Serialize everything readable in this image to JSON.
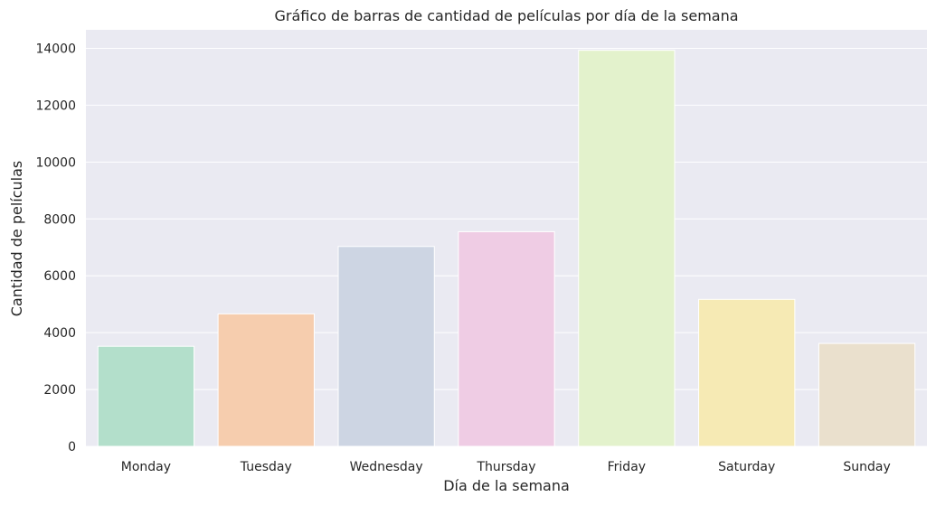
{
  "chart_data": {
    "type": "bar",
    "title": "Gráfico de barras de cantidad de películas por día de la semana",
    "xlabel": "Día de la semana",
    "ylabel": "Cantidad de películas",
    "categories": [
      "Monday",
      "Tuesday",
      "Wednesday",
      "Thursday",
      "Friday",
      "Saturday",
      "Sunday"
    ],
    "values": [
      3520,
      4660,
      7030,
      7550,
      13930,
      5170,
      3620
    ],
    "colors": [
      "#b3dfcb",
      "#f6cdae",
      "#cdd5e3",
      "#efcce4",
      "#e3f2cc",
      "#f6eab4",
      "#eae0cd"
    ],
    "ylim": [
      0,
      14650
    ],
    "yticks": [
      0,
      2000,
      4000,
      6000,
      8000,
      10000,
      12000,
      14000
    ],
    "ytick_labels": [
      "0",
      "2000",
      "4000",
      "6000",
      "8000",
      "10000",
      "12000",
      "14000"
    ],
    "grid": true,
    "background": "#eaeaf2",
    "grid_color": "#ffffff"
  }
}
